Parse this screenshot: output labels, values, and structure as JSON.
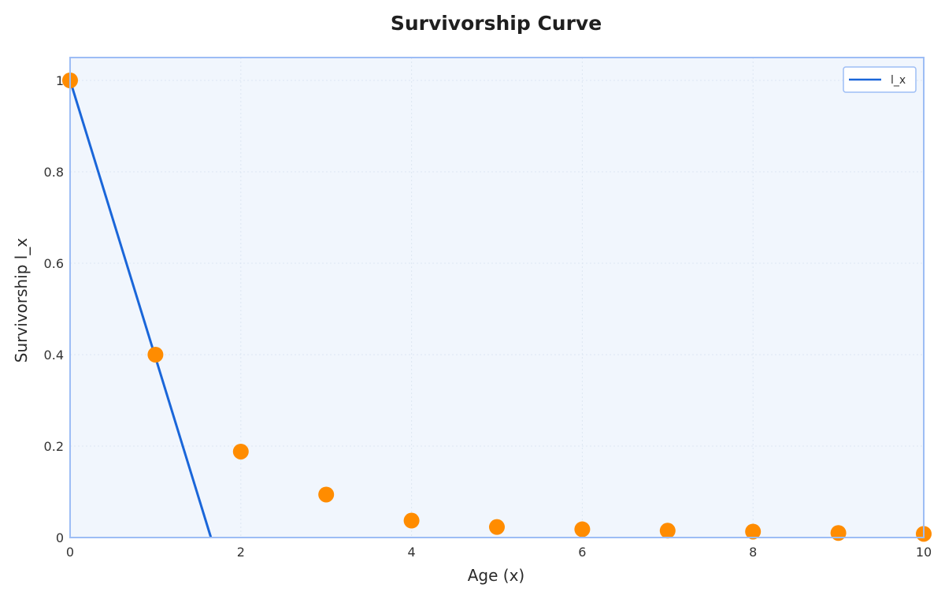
{
  "chart_data": {
    "type": "line",
    "title": "Survivorship Curve",
    "xlabel": "Age (x)",
    "ylabel": "Survivorship l_x",
    "xlim": [
      0,
      10
    ],
    "ylim": [
      0,
      1.05
    ],
    "x_ticks": [
      0,
      2,
      4,
      6,
      8,
      10
    ],
    "x_tick_labels": [
      "0",
      "2",
      "4",
      "6",
      "8",
      "10"
    ],
    "y_ticks": [
      0,
      0.2,
      0.4,
      0.6,
      0.8,
      1
    ],
    "y_tick_labels": [
      "0",
      "0.2",
      "0.4",
      "0.6",
      "0.8",
      "1"
    ],
    "grid": true,
    "legend_position": "top-right",
    "series": [
      {
        "name": "l_x",
        "kind": "line",
        "color": "#1a66d9",
        "x": [
          0,
          1.65
        ],
        "y": [
          1,
          0
        ]
      },
      {
        "kind": "scatter",
        "color": "#ff8c00",
        "x": [
          0,
          1,
          2,
          3,
          4,
          5,
          6,
          7,
          8,
          9,
          10
        ],
        "y": [
          1,
          0.4,
          0.188,
          0.094,
          0.037,
          0.023,
          0.018,
          0.015,
          0.013,
          0.01,
          0.008
        ]
      }
    ],
    "colors": {
      "plot_background": "#f1f6fd",
      "plot_border": "#9dbdf5",
      "grid": "#dde6f2"
    }
  }
}
